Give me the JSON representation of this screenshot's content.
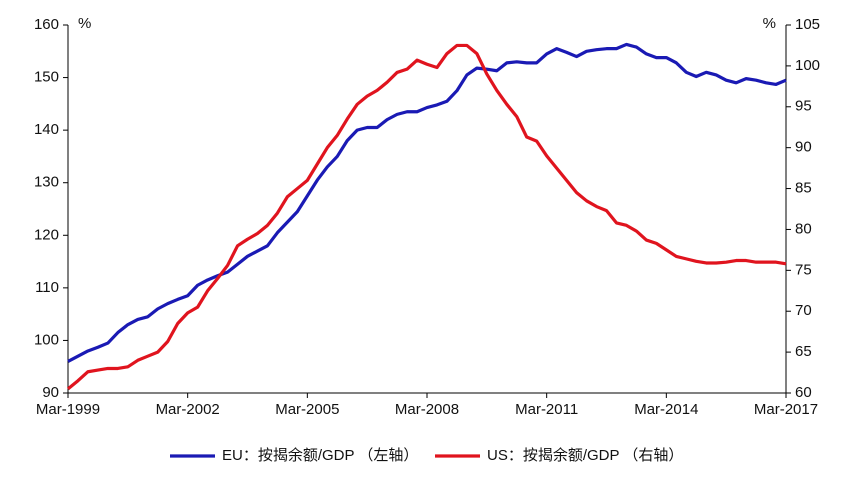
{
  "chart_data": {
    "type": "line",
    "categories": [
      "Mar-1999",
      null,
      null,
      null,
      null,
      null,
      null,
      null,
      null,
      null,
      null,
      null,
      "Mar-2002",
      null,
      null,
      null,
      null,
      null,
      null,
      null,
      null,
      null,
      null,
      null,
      "Mar-2005",
      null,
      null,
      null,
      null,
      null,
      null,
      null,
      null,
      null,
      null,
      null,
      "Mar-2008",
      null,
      null,
      null,
      null,
      null,
      null,
      null,
      null,
      null,
      null,
      null,
      "Mar-2011",
      null,
      null,
      null,
      null,
      null,
      null,
      null,
      null,
      null,
      null,
      null,
      "Mar-2014",
      null,
      null,
      null,
      null,
      null,
      null,
      null,
      null,
      null,
      null,
      null,
      "Mar-2017"
    ],
    "ylabel": "%",
    "y2label": "%",
    "ylim": [
      90,
      160
    ],
    "yticks": [
      90,
      100,
      110,
      120,
      130,
      140,
      150,
      160
    ],
    "y2lim": [
      60,
      105
    ],
    "y2ticks": [
      60,
      65,
      70,
      75,
      80,
      85,
      90,
      95,
      100,
      105
    ],
    "legend": "bottom",
    "series": [
      {
        "name": "EU：按揭余额/GDP （左轴）",
        "color": "#1a1ab4",
        "axis": "y",
        "values": [
          96,
          97,
          98,
          98.7,
          99.5,
          101.5,
          103,
          104,
          104.5,
          106,
          107,
          107.8,
          108.5,
          110.5,
          111.5,
          112.3,
          113,
          114.5,
          116,
          117,
          118,
          120.5,
          122.5,
          124.5,
          127.5,
          130.5,
          133,
          135,
          138,
          140,
          140.5,
          140.5,
          142,
          143,
          143.5,
          143.5,
          144.3,
          144.8,
          145.5,
          147.5,
          150.5,
          151.8,
          151.6,
          151.3,
          152.8,
          153,
          152.8,
          152.8,
          154.5,
          155.5,
          154.8,
          154,
          155,
          155.3,
          155.5,
          155.5,
          156.3,
          155.8,
          154.5,
          153.8,
          153.8,
          152.8,
          151,
          150.2,
          151,
          150.5,
          149.5,
          149,
          149.8,
          149.5,
          149,
          148.7,
          149.5
        ]
      },
      {
        "name": "US：按揭余额/GDP （右轴）",
        "color": "#e0141e",
        "axis": "y2",
        "values": [
          60.5,
          61.5,
          62.6,
          62.8,
          63,
          63,
          63.2,
          64,
          64.5,
          65,
          66.3,
          68.5,
          69.8,
          70.5,
          72.5,
          74,
          75.6,
          78,
          78.8,
          79.5,
          80.5,
          82,
          84,
          85,
          86,
          88,
          90,
          91.5,
          93.5,
          95.3,
          96.3,
          97,
          98,
          99.2,
          99.6,
          100.7,
          100.2,
          99.8,
          101.5,
          102.5,
          102.5,
          101.5,
          99,
          97,
          95.3,
          93.8,
          91.3,
          90.8,
          89,
          87.5,
          86,
          84.5,
          83.5,
          82.8,
          82.3,
          80.8,
          80.5,
          79.8,
          78.7,
          78.3,
          77.5,
          76.7,
          76.4,
          76.1,
          75.9,
          75.9,
          76,
          76.2,
          76.2,
          76,
          76,
          76,
          75.8
        ]
      }
    ]
  }
}
